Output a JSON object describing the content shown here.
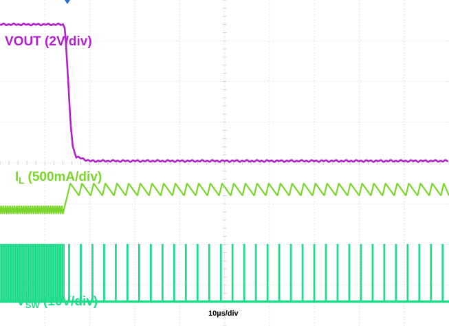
{
  "colors": {
    "vout": "#b31fcc",
    "il": "#7ad62a",
    "vsw": "#1fdc8a",
    "grid": "#c8c8c8",
    "marker": "#2a6fc9"
  },
  "labels": {
    "vout": "VOUT (2V/div)",
    "il_main": "I",
    "il_sub": "L",
    "il_rest": " (500mA/div)",
    "vsw_main": "V",
    "vsw_sub": "SW",
    "vsw_rest": " (10V/div)",
    "timebase": "10µs/div"
  },
  "chart_data": {
    "type": "line",
    "title": "",
    "xlabel": "10µs/div",
    "x_divisions": 10,
    "y_divisions": 8,
    "trigger_time_us": 15,
    "grid": true,
    "series": [
      {
        "name": "VOUT (2V/div)",
        "points_us_div": [
          [
            0,
            7.4
          ],
          [
            14,
            7.4
          ],
          [
            14.5,
            7.3
          ],
          [
            15.7,
            5.0
          ],
          [
            16.2,
            4.4
          ],
          [
            17,
            4.15
          ],
          [
            20,
            4.05
          ],
          [
            100,
            4.05
          ]
        ]
      },
      {
        "name": "IL (500mA/div)",
        "before_us": {
          "from": 0,
          "to": 14,
          "level_div": 2.85,
          "ripple_div": 0.1,
          "period_us": 0.5
        },
        "after_us": {
          "from": 15,
          "to": 100,
          "low_div": 3.2,
          "high_div": 3.5,
          "period_us": 2.6
        }
      },
      {
        "name": "VSW (10V/div)",
        "low_div": 0.6,
        "high_div": 2.0,
        "before_us": {
          "from": 0,
          "to": 14.2,
          "period_us": 0.5
        },
        "after_us": {
          "from": 15.3,
          "to": 100,
          "period_us": 2.6
        }
      }
    ]
  }
}
